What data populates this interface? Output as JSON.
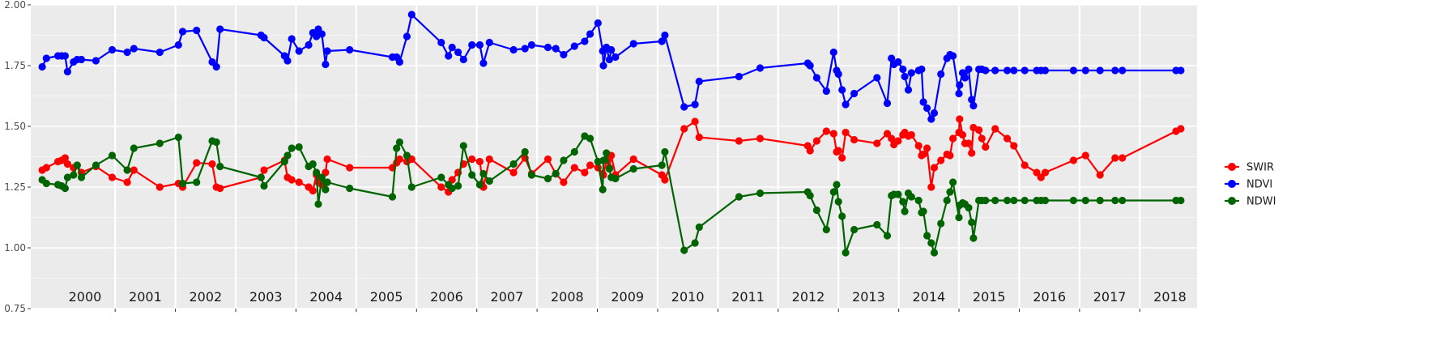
{
  "chart_data": {
    "type": "line",
    "title": "",
    "xlabel": "",
    "ylabel": "",
    "ylim": [
      0.75,
      2.0
    ],
    "xlim": [
      1999.6,
      2018.95
    ],
    "grid": true,
    "legend_position": "right",
    "yticks": [
      "0.75",
      "1.00",
      "1.25",
      "1.50",
      "1.75",
      "2.00"
    ],
    "year_labels": [
      "2000",
      "2001",
      "2002",
      "2003",
      "2004",
      "2005",
      "2006",
      "2007",
      "2008",
      "2009",
      "2010",
      "2011",
      "2012",
      "2013",
      "2014",
      "2015",
      "2016",
      "2017",
      "2018"
    ],
    "x": [
      1999.79,
      1999.86,
      2000.05,
      2000.11,
      2000.17,
      2000.21,
      2000.31,
      2000.37,
      2000.44,
      2000.68,
      2000.95,
      2001.2,
      2001.31,
      2001.74,
      2002.05,
      2002.12,
      2002.35,
      2002.61,
      2002.68,
      2002.74,
      2003.42,
      2003.47,
      2003.81,
      2003.86,
      2003.93,
      2004.05,
      2004.21,
      2004.28,
      2004.34,
      2004.37,
      2004.43,
      2004.49,
      2004.52,
      2004.89,
      2005.6,
      2005.67,
      2005.72,
      2005.84,
      2005.92,
      2006.41,
      2006.53,
      2006.59,
      2006.69,
      2006.78,
      2006.92,
      2007.05,
      2007.11,
      2007.21,
      2007.61,
      2007.8,
      2007.91,
      2008.18,
      2008.31,
      2008.44,
      2008.62,
      2008.79,
      2008.88,
      2009.01,
      2009.09,
      2009.1,
      2009.15,
      2009.2,
      2009.23,
      2009.3,
      2009.6,
      2010.07,
      2010.12,
      2010.44,
      2010.62,
      2010.69,
      2011.35,
      2011.7,
      2012.49,
      2012.53,
      2012.64,
      2012.8,
      2012.92,
      2012.97,
      2013.0,
      2013.06,
      2013.12,
      2013.26,
      2013.64,
      2013.81,
      2013.88,
      2013.92,
      2013.99,
      2014.07,
      2014.1,
      2014.16,
      2014.21,
      2014.33,
      2014.38,
      2014.41,
      2014.47,
      2014.54,
      2014.59,
      2014.7,
      2014.8,
      2014.85,
      2014.9,
      2015.0,
      2015.01,
      2015.06,
      2015.1,
      2015.16,
      2015.21,
      2015.24,
      2015.33,
      2015.38,
      2015.44,
      2015.6,
      2015.8,
      2015.91,
      2016.09,
      2016.29,
      2016.36,
      2016.43,
      2016.9,
      2017.1,
      2017.34,
      2017.59,
      2017.71,
      2018.6,
      2018.68
    ],
    "series": [
      {
        "name": "SWIR",
        "color": "#ff0000",
        "values": [
          1.32,
          1.33,
          1.355,
          1.36,
          1.37,
          1.345,
          1.33,
          1.34,
          1.31,
          1.335,
          1.29,
          1.27,
          1.32,
          1.25,
          1.265,
          1.25,
          1.35,
          1.345,
          1.25,
          1.245,
          1.29,
          1.32,
          1.36,
          1.29,
          1.28,
          1.27,
          1.25,
          1.235,
          1.3,
          1.27,
          1.26,
          1.31,
          1.365,
          1.33,
          1.33,
          1.35,
          1.365,
          1.355,
          1.365,
          1.25,
          1.23,
          1.28,
          1.31,
          1.345,
          1.365,
          1.355,
          1.25,
          1.365,
          1.31,
          1.37,
          1.305,
          1.365,
          1.305,
          1.27,
          1.33,
          1.31,
          1.34,
          1.33,
          1.305,
          1.3,
          1.36,
          1.33,
          1.38,
          1.3,
          1.365,
          1.3,
          1.28,
          1.49,
          1.52,
          1.455,
          1.44,
          1.45,
          1.42,
          1.4,
          1.44,
          1.48,
          1.47,
          1.395,
          1.4,
          1.37,
          1.475,
          1.445,
          1.43,
          1.47,
          1.45,
          1.425,
          1.44,
          1.465,
          1.475,
          1.46,
          1.465,
          1.42,
          1.38,
          1.385,
          1.41,
          1.25,
          1.33,
          1.36,
          1.385,
          1.38,
          1.45,
          1.475,
          1.53,
          1.465,
          1.43,
          1.43,
          1.39,
          1.495,
          1.485,
          1.45,
          1.415,
          1.49,
          1.45,
          1.42,
          1.34,
          1.31,
          1.29,
          1.31,
          1.36,
          1.38,
          1.3,
          1.37,
          1.37,
          1.48,
          1.49
        ],
        "note_hidden": true
      },
      {
        "name": "NDVI",
        "color": "#0000ff",
        "values": [
          1.745,
          1.78,
          1.79,
          1.79,
          1.79,
          1.725,
          1.765,
          1.775,
          1.775,
          1.77,
          1.815,
          1.805,
          1.82,
          1.805,
          1.835,
          1.89,
          1.895,
          1.765,
          1.745,
          1.9,
          1.875,
          1.865,
          1.79,
          1.77,
          1.86,
          1.81,
          1.835,
          1.885,
          1.87,
          1.9,
          1.88,
          1.755,
          1.81,
          1.815,
          1.785,
          1.785,
          1.765,
          1.87,
          1.96,
          1.845,
          1.79,
          1.825,
          1.805,
          1.775,
          1.835,
          1.835,
          1.76,
          1.845,
          1.815,
          1.82,
          1.835,
          1.825,
          1.82,
          1.795,
          1.83,
          1.85,
          1.88,
          1.925,
          1.81,
          1.75,
          1.825,
          1.775,
          1.815,
          1.785,
          1.84,
          1.85,
          1.875,
          1.58,
          1.59,
          1.685,
          1.705,
          1.74,
          1.76,
          1.75,
          1.7,
          1.645,
          1.805,
          1.73,
          1.715,
          1.65,
          1.59,
          1.635,
          1.7,
          1.595,
          1.78,
          1.755,
          1.765,
          1.735,
          1.705,
          1.65,
          1.72,
          1.73,
          1.735,
          1.6,
          1.575,
          1.53,
          1.555,
          1.715,
          1.78,
          1.795,
          1.79,
          1.635,
          1.67,
          1.72,
          1.7,
          1.735,
          1.61,
          1.585,
          1.735,
          1.735,
          1.73,
          1.73,
          1.73,
          1.73,
          1.73,
          1.73,
          1.73,
          1.73,
          1.73,
          1.73,
          1.73,
          1.73,
          1.73,
          1.73,
          1.73
        ]
      },
      {
        "name": "NDWI",
        "color": "#006400",
        "values": [
          1.28,
          1.265,
          1.26,
          1.255,
          1.245,
          1.29,
          1.3,
          1.34,
          1.29,
          1.34,
          1.38,
          1.32,
          1.41,
          1.43,
          1.455,
          1.265,
          1.27,
          1.44,
          1.435,
          1.335,
          1.29,
          1.255,
          1.355,
          1.38,
          1.41,
          1.415,
          1.335,
          1.345,
          1.31,
          1.18,
          1.29,
          1.24,
          1.27,
          1.245,
          1.21,
          1.41,
          1.435,
          1.38,
          1.25,
          1.29,
          1.26,
          1.245,
          1.255,
          1.42,
          1.3,
          1.26,
          1.305,
          1.275,
          1.345,
          1.395,
          1.3,
          1.285,
          1.305,
          1.36,
          1.395,
          1.46,
          1.45,
          1.355,
          1.24,
          1.36,
          1.39,
          1.325,
          1.29,
          1.285,
          1.325,
          1.34,
          1.395,
          0.99,
          1.02,
          1.085,
          1.21,
          1.225,
          1.23,
          1.215,
          1.155,
          1.075,
          1.23,
          1.26,
          1.19,
          1.13,
          0.98,
          1.075,
          1.095,
          1.05,
          1.215,
          1.22,
          1.22,
          1.19,
          1.15,
          1.225,
          1.21,
          1.195,
          1.145,
          1.15,
          1.05,
          1.02,
          0.98,
          1.1,
          1.195,
          1.23,
          1.27,
          1.125,
          1.175,
          1.185,
          1.18,
          1.165,
          1.105,
          1.04,
          1.195,
          1.195,
          1.195,
          1.195,
          1.195,
          1.195,
          1.195,
          1.195,
          1.195,
          1.195,
          1.195,
          1.195,
          1.195,
          1.195,
          1.195,
          1.195,
          1.195
        ]
      }
    ]
  }
}
